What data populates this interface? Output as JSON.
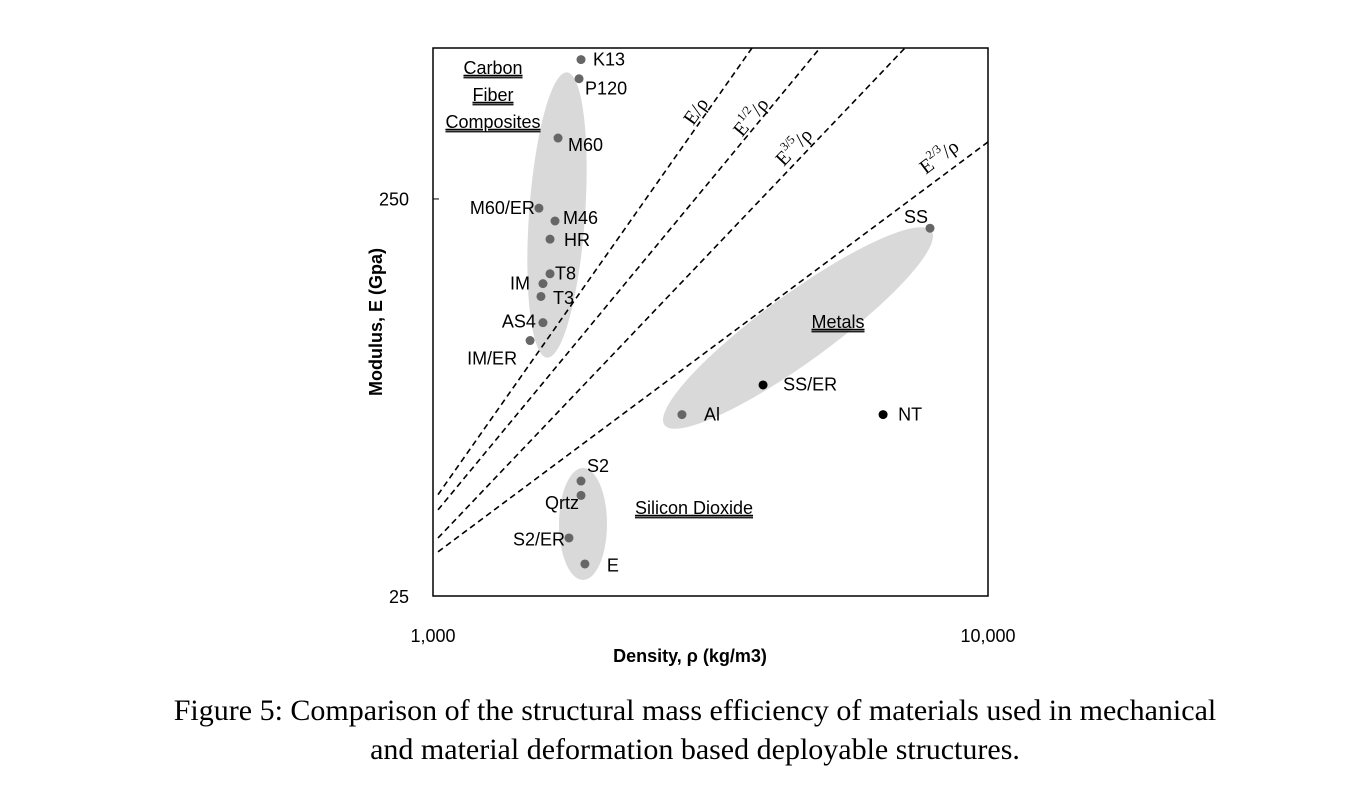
{
  "chart_data": {
    "type": "scatter",
    "xlabel": "Density, ρ (kg/m3)",
    "ylabel": "Modulus, E (Gpa)",
    "xlog": true,
    "ylog": true,
    "xlim": [
      1000,
      10000
    ],
    "ylim": [
      25,
      600
    ],
    "xticks": [
      {
        "value": 1000,
        "label": "1,000"
      },
      {
        "value": 10000,
        "label": "10,000"
      }
    ],
    "yticks": [
      25,
      250
    ],
    "series": [
      {
        "labels": [
          "K13",
          "P120",
          "M60",
          "M60/ER",
          "M46",
          "HR",
          "T8",
          "IM",
          "T3",
          "AS4",
          "IM/ER",
          "SS",
          "SS/ER",
          "Al",
          "NT",
          "S2",
          "Qrtz",
          "S2/ER",
          "E"
        ],
        "x": [
          1848,
          1833,
          1680,
          1552,
          1659,
          1625,
          1625,
          1578,
          1565,
          1578,
          1496,
          7862,
          3933,
          2809,
          6471,
          1848,
          1848,
          1758,
          1878
        ],
        "values": [
          561,
          502,
          356,
          237,
          220,
          198,
          162,
          153,
          142,
          122,
          110,
          211,
          85,
          71.6,
          71.6,
          48.7,
          44.8,
          35,
          30.1
        ],
        "colors": [
          "#666666",
          "#666666",
          "#666666",
          "#666666",
          "#666666",
          "#666666",
          "#666666",
          "#666666",
          "#666666",
          "#666666",
          "#666666",
          "#666666",
          "#000000",
          "#666666",
          "#000000",
          "#666666",
          "#666666",
          "#666666",
          "#666666"
        ]
      }
    ],
    "guides": [
      {
        "base": "E",
        "sup": "",
        "rest": "/ρ",
        "x": [
          1021,
          3756
        ],
        "y": [
          45,
          600
        ]
      },
      {
        "base": "E",
        "sup": "1/2",
        "rest": "/ρ",
        "x": [
          1021,
          4980
        ],
        "y": [
          41.2,
          600
        ]
      },
      {
        "base": "E",
        "sup": "3/5",
        "rest": "/ρ",
        "x": [
          1021,
          7086
        ],
        "y": [
          35,
          600
        ]
      },
      {
        "base": "E",
        "sup": "2/3",
        "rest": "/ρ",
        "x": [
          1021,
          10000
        ],
        "y": [
          32.3,
          348
        ]
      }
    ],
    "groups": [
      {
        "lines": [
          "Carbon",
          "Fiber",
          "Composites"
        ]
      },
      {
        "lines": [
          "Metals"
        ]
      },
      {
        "lines": [
          "Silicon Dioxide"
        ]
      }
    ],
    "caption": [
      "Figure 5: Comparison of the structural mass efficiency of materials used in mechanical",
      "and material deformation based deployable structures."
    ]
  }
}
